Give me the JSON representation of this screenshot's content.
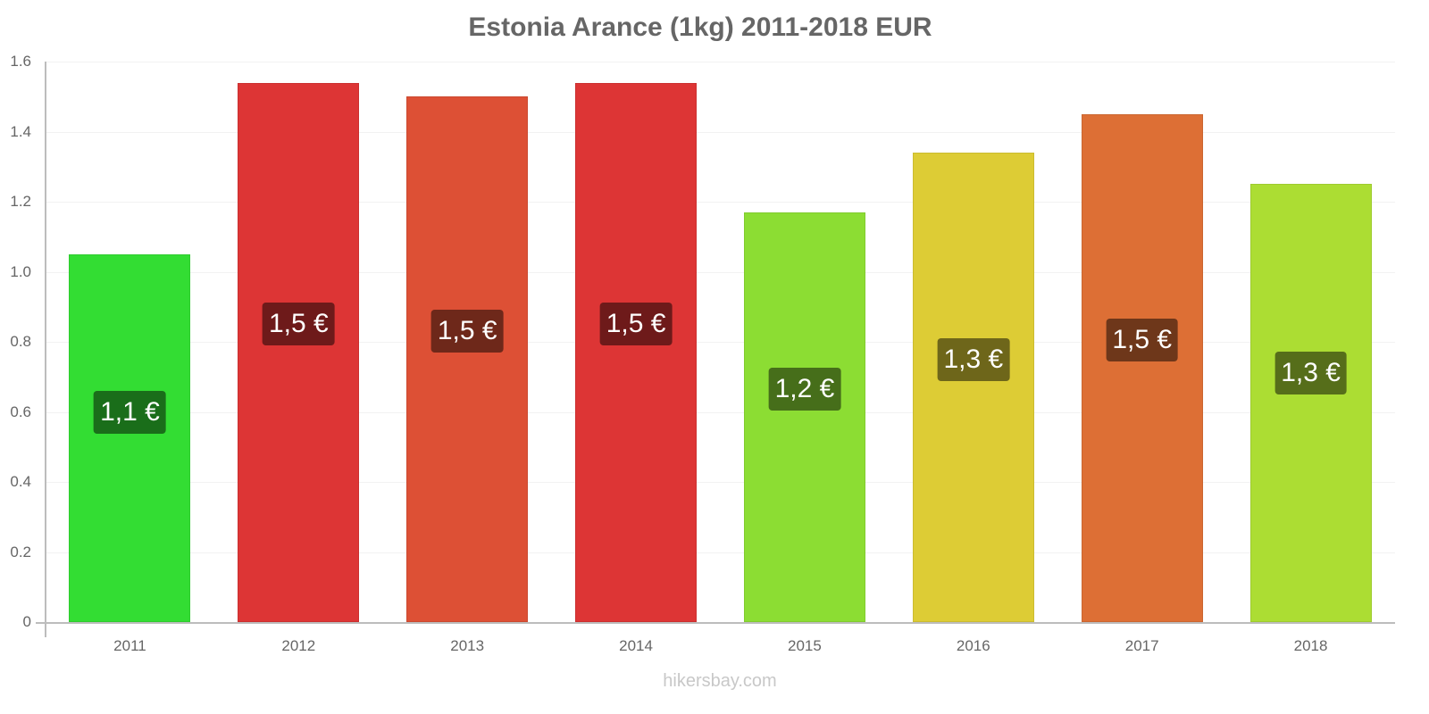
{
  "title": "Estonia Arance (1kg) 2011-2018 EUR",
  "watermark": "hikersbay.com",
  "yaxis": {
    "ticks": [
      "0",
      "0.2",
      "0.4",
      "0.6",
      "0.8",
      "1.0",
      "1.2",
      "1.4",
      "1.6"
    ]
  },
  "bars": [
    {
      "year": "2011",
      "value": 1.05,
      "label": "1,1 €",
      "color": "#33dd33",
      "label_bg": "#1a6e1a",
      "label_y": 0.6
    },
    {
      "year": "2012",
      "value": 1.54,
      "label": "1,5 €",
      "color": "#dd3535",
      "label_bg": "#6e1a1a",
      "label_y": 0.85
    },
    {
      "year": "2013",
      "value": 1.5,
      "label": "1,5 €",
      "color": "#dd5035",
      "label_bg": "#6e281a",
      "label_y": 0.83
    },
    {
      "year": "2014",
      "value": 1.54,
      "label": "1,5 €",
      "color": "#dd3535",
      "label_bg": "#6e1a1a",
      "label_y": 0.85
    },
    {
      "year": "2015",
      "value": 1.17,
      "label": "1,2 €",
      "color": "#8cdd33",
      "label_bg": "#466e1a",
      "label_y": 0.665
    },
    {
      "year": "2016",
      "value": 1.34,
      "label": "1,3 €",
      "color": "#ddcc35",
      "label_bg": "#6e661a",
      "label_y": 0.75
    },
    {
      "year": "2017",
      "value": 1.45,
      "label": "1,5 €",
      "color": "#dd6f35",
      "label_bg": "#6e371a",
      "label_y": 0.805
    },
    {
      "year": "2018",
      "value": 1.25,
      "label": "1,3 €",
      "color": "#acdd33",
      "label_bg": "#566e1a",
      "label_y": 0.71
    }
  ],
  "chart_data": {
    "type": "bar",
    "title": "Estonia Arance (1kg) 2011-2018 EUR",
    "categories": [
      "2011",
      "2012",
      "2013",
      "2014",
      "2015",
      "2016",
      "2017",
      "2018"
    ],
    "values": [
      1.05,
      1.54,
      1.5,
      1.54,
      1.17,
      1.34,
      1.45,
      1.25
    ],
    "data_labels": [
      "1,1 €",
      "1,5 €",
      "1,5 €",
      "1,5 €",
      "1,2 €",
      "1,3 €",
      "1,5 €",
      "1,3 €"
    ],
    "xlabel": "",
    "ylabel": "",
    "ylim": [
      0,
      1.6
    ],
    "yticks": [
      0,
      0.2,
      0.4,
      0.6,
      0.8,
      1.0,
      1.2,
      1.4,
      1.6
    ],
    "grid": true,
    "legend": null,
    "source": "hikersbay.com"
  }
}
